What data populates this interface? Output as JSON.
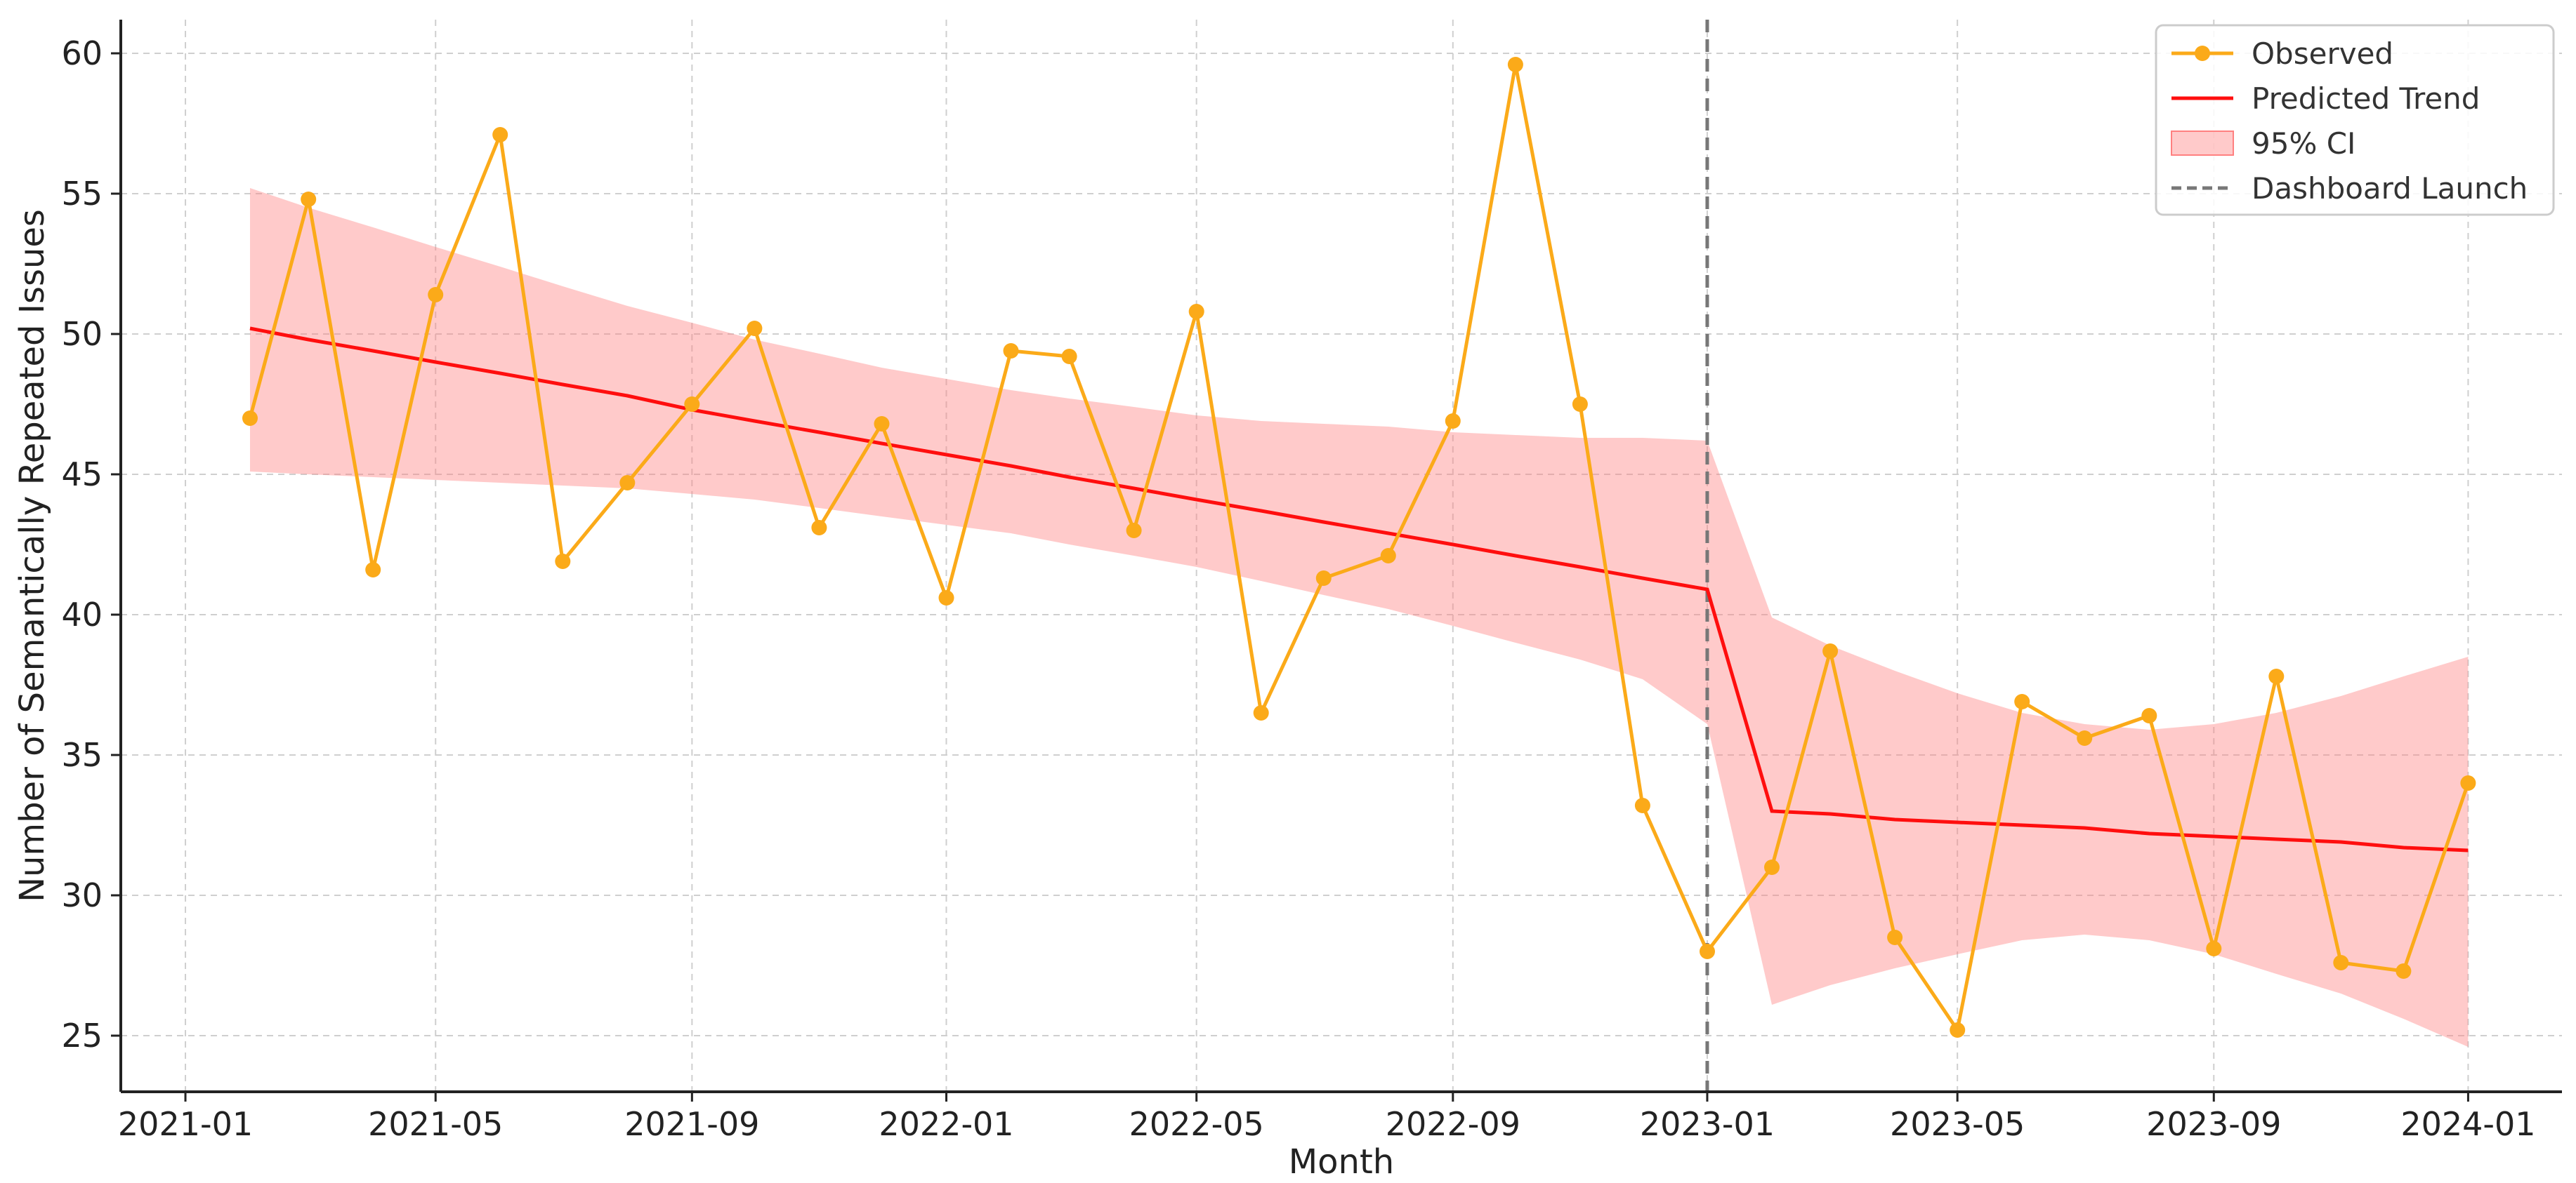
{
  "chart_data": {
    "type": "line",
    "title": "",
    "xlabel": "Month",
    "ylabel": "Number of Semantically Repeated Issues",
    "x_tick_labels": [
      "2021-01",
      "2021-05",
      "2021-09",
      "2022-01",
      "2022-05",
      "2022-09",
      "2023-01",
      "2023-05",
      "2023-09",
      "2024-01"
    ],
    "y_ticks": [
      25,
      30,
      35,
      40,
      45,
      50,
      55,
      60
    ],
    "ylim": [
      23,
      61.2
    ],
    "xlim": [
      "2020-12-01",
      "2024-02-15"
    ],
    "grid": true,
    "legend_position": "top-right",
    "x": [
      "2021-02-01",
      "2021-03-01",
      "2021-04-01",
      "2021-05-01",
      "2021-06-01",
      "2021-07-01",
      "2021-08-01",
      "2021-09-01",
      "2021-10-01",
      "2021-11-01",
      "2021-12-01",
      "2022-01-01",
      "2022-02-01",
      "2022-03-01",
      "2022-04-01",
      "2022-05-01",
      "2022-06-01",
      "2022-07-01",
      "2022-08-01",
      "2022-09-01",
      "2022-10-01",
      "2022-11-01",
      "2022-12-01",
      "2023-01-01",
      "2023-02-01",
      "2023-03-01",
      "2023-04-01",
      "2023-05-01",
      "2023-06-01",
      "2023-07-01",
      "2023-08-01",
      "2023-09-01",
      "2023-10-01",
      "2023-11-01",
      "2023-12-01",
      "2024-01-01"
    ],
    "series": [
      {
        "name": "Observed",
        "color": "#fbaa19",
        "marker": "circle",
        "values": [
          47.0,
          54.8,
          41.6,
          51.4,
          57.1,
          41.9,
          44.7,
          47.5,
          50.2,
          43.1,
          46.8,
          40.6,
          49.4,
          49.2,
          43.0,
          50.8,
          36.5,
          41.3,
          42.1,
          46.9,
          59.6,
          47.5,
          33.2,
          28.0,
          31.0,
          38.7,
          28.5,
          25.2,
          36.9,
          35.6,
          36.4,
          28.1,
          37.8,
          27.6,
          27.3,
          34.0
        ]
      },
      {
        "name": "Predicted Trend",
        "color": "#ff0e0e",
        "values": [
          50.2,
          49.8,
          49.4,
          49.0,
          48.6,
          48.2,
          47.8,
          47.3,
          46.9,
          46.5,
          46.1,
          45.7,
          45.3,
          44.9,
          44.5,
          44.1,
          43.7,
          43.3,
          42.9,
          42.5,
          42.1,
          41.7,
          41.3,
          40.9,
          33.0,
          32.9,
          32.7,
          32.6,
          32.5,
          32.4,
          32.2,
          32.1,
          32.0,
          31.9,
          31.7,
          31.6
        ]
      },
      {
        "name": "95% CI",
        "color": "#ff8080",
        "type": "band",
        "lower": [
          45.1,
          45.0,
          44.9,
          44.8,
          44.7,
          44.6,
          44.5,
          44.3,
          44.1,
          43.8,
          43.5,
          43.2,
          42.9,
          42.5,
          42.1,
          41.7,
          41.2,
          40.7,
          40.2,
          39.6,
          39.0,
          38.4,
          37.7,
          36.1,
          26.1,
          26.8,
          27.4,
          27.9,
          28.4,
          28.6,
          28.4,
          27.9,
          27.2,
          26.5,
          25.6,
          24.6
        ],
        "upper": [
          55.2,
          54.5,
          53.8,
          53.1,
          52.4,
          51.7,
          51.0,
          50.4,
          49.8,
          49.3,
          48.8,
          48.4,
          48.0,
          47.7,
          47.4,
          47.1,
          46.9,
          46.8,
          46.7,
          46.5,
          46.4,
          46.3,
          46.3,
          46.2,
          39.9,
          38.9,
          38.0,
          37.2,
          36.5,
          36.1,
          35.9,
          36.1,
          36.5,
          37.1,
          37.8,
          38.5
        ]
      }
    ],
    "annotations": [
      {
        "type": "vline",
        "x": "2023-01-01",
        "label": "Dashboard Launch",
        "color": "#777777",
        "style": "dashed"
      }
    ],
    "legend": [
      {
        "label": "Observed",
        "kind": "line-marker",
        "color": "#fbaa19"
      },
      {
        "label": "Predicted Trend",
        "kind": "line",
        "color": "#ff0e0e"
      },
      {
        "label": "95% CI",
        "kind": "patch",
        "color": "#ff8080"
      },
      {
        "label": "Dashboard Launch",
        "kind": "dashed-line",
        "color": "#777777"
      }
    ]
  }
}
